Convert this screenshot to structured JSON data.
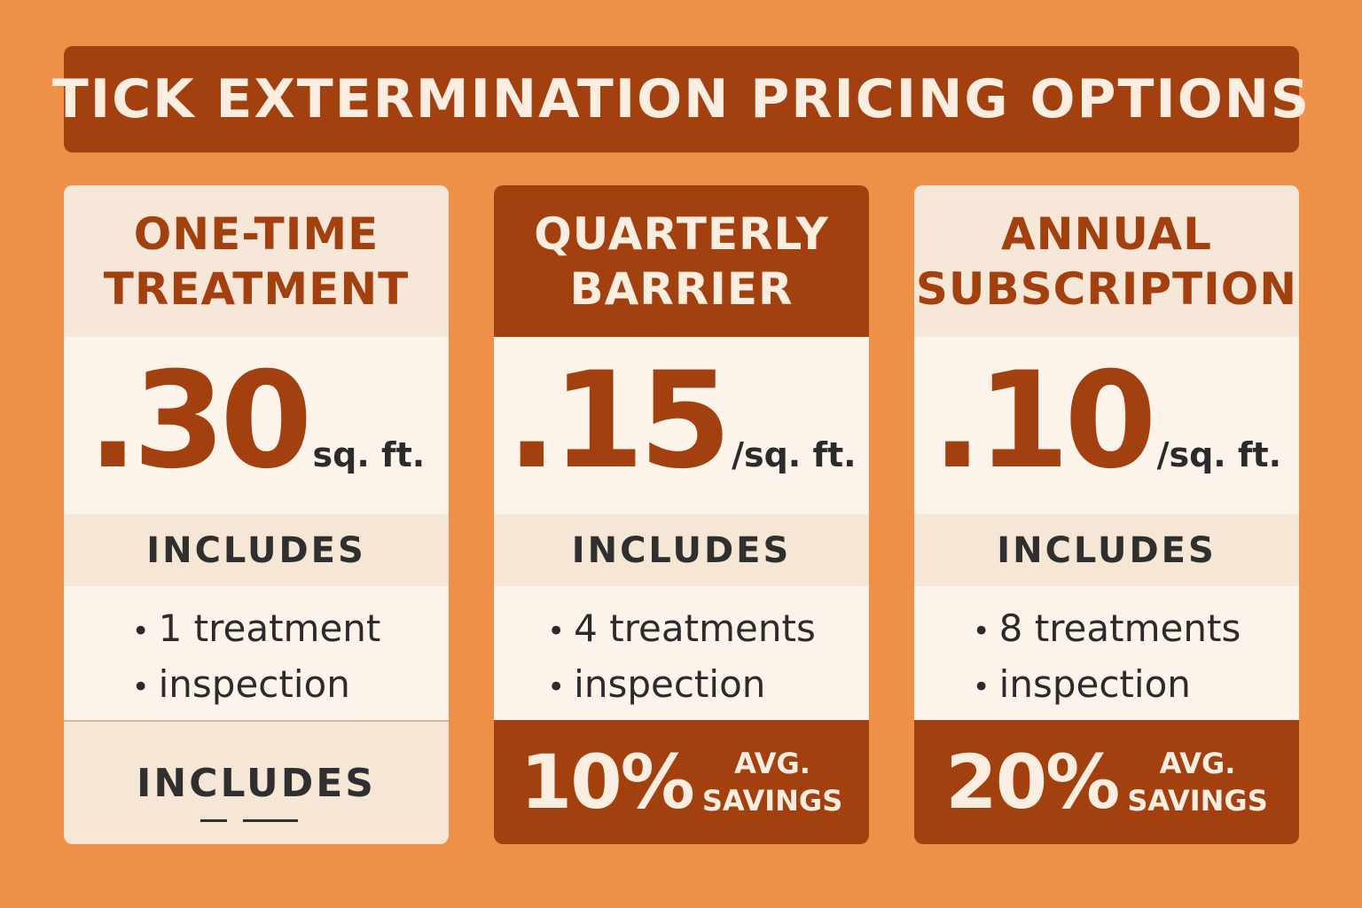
{
  "title": "TICK EXTERMINATION PRICING OPTIONS",
  "colors": {
    "background": "#ee9047",
    "accent": "#a2410f",
    "card_light": "#fcf3ea",
    "card_tint": "#f6e6d6",
    "text_dark": "#2b2b2b"
  },
  "plans": [
    {
      "name_line1": "ONE-TIME",
      "name_line2": "TREATMENT",
      "price": ".30",
      "unit": "sq. ft.",
      "includes_label": "INCLUDES",
      "bullet": "•",
      "features": [
        "1 treatment",
        "inspection"
      ],
      "footer_label": "INCLUDES"
    },
    {
      "name_line1": "QUARTERLY",
      "name_line2": "BARRIER",
      "price": ".15",
      "unit": "/sq. ft.",
      "includes_label": "INCLUDES",
      "bullet": "•",
      "features": [
        "4 treatments",
        "inspection"
      ],
      "savings_pct": "10%",
      "savings_line1": "AVG.",
      "savings_line2": "SAVINGS"
    },
    {
      "name_line1": "ANNUAL",
      "name_line2": "SUBSCRIPTION",
      "price": ".10",
      "unit": "/sq. ft.",
      "includes_label": "INCLUDES",
      "bullet": "•",
      "features": [
        "8 treatments",
        "inspection"
      ],
      "savings_pct": "20%",
      "savings_line1": "AVG.",
      "savings_line2": "SAVINGS"
    }
  ]
}
